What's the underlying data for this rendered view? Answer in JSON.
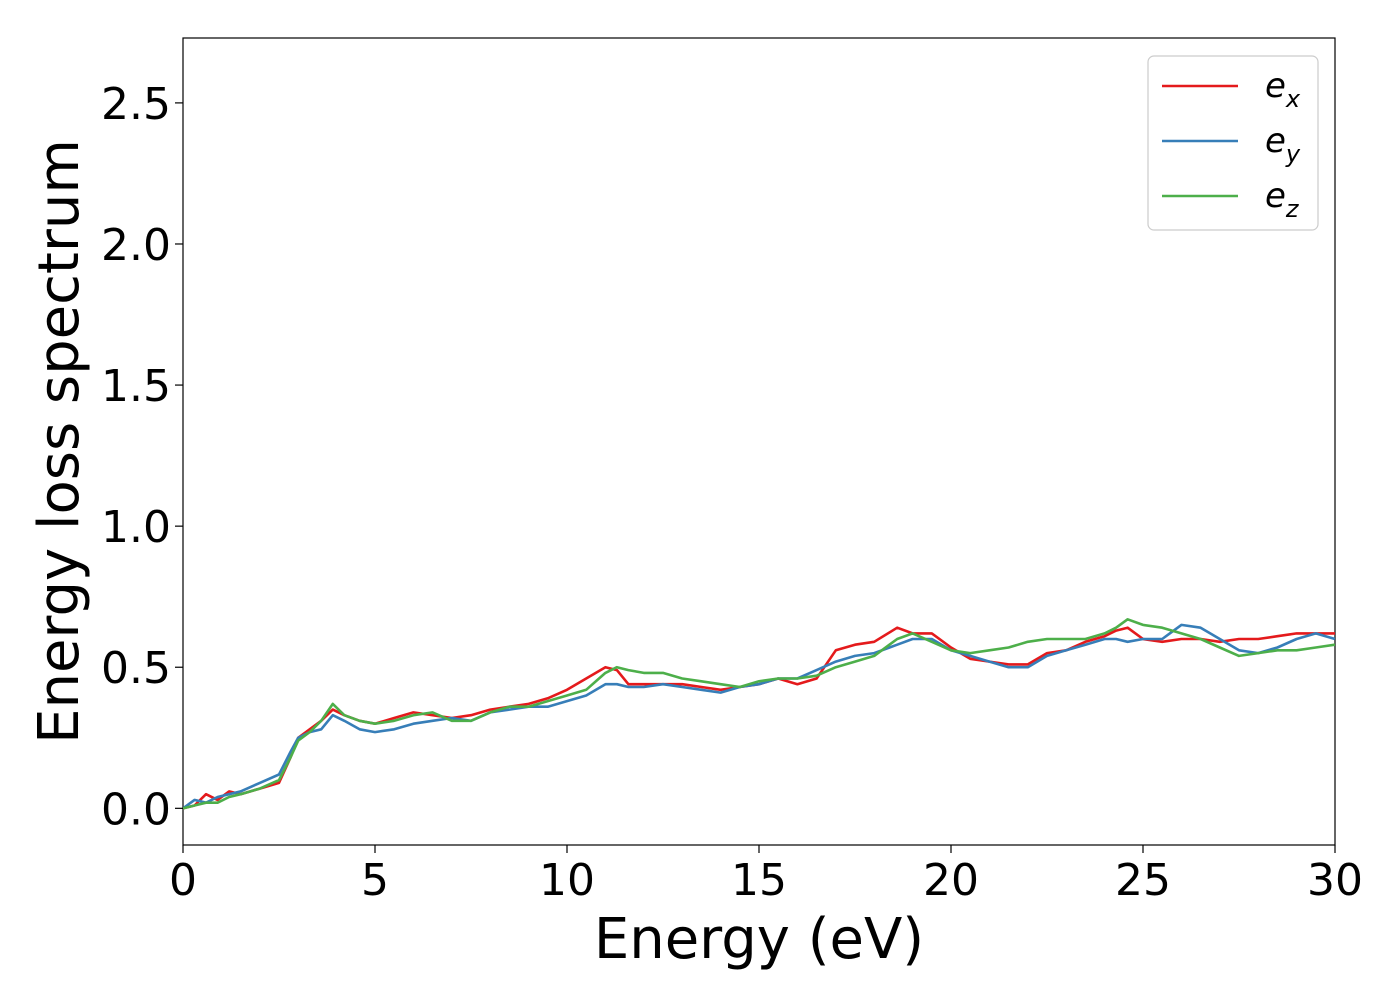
{
  "chart_data": {
    "type": "line",
    "title": "",
    "xlabel": "Energy (eV)",
    "ylabel": "Energy loss spectrum",
    "xlim": [
      0,
      30
    ],
    "ylim": [
      -0.13,
      2.73
    ],
    "xticks": [
      0,
      5,
      10,
      15,
      20,
      25,
      30
    ],
    "xtick_labels": [
      "0",
      "5",
      "10",
      "15",
      "20",
      "25",
      "30"
    ],
    "yticks": [
      0.0,
      0.5,
      1.0,
      1.5,
      2.0,
      2.5
    ],
    "ytick_labels": [
      "0.0",
      "0.5",
      "1.0",
      "1.5",
      "2.0",
      "2.5"
    ],
    "grid": false,
    "legend_position": "top-right",
    "series": [
      {
        "name": "e_x",
        "label_base": "e",
        "label_sub": "x",
        "color": "#e41a1c",
        "x": [
          0,
          0.3,
          0.6,
          0.9,
          1.2,
          1.5,
          2.0,
          2.5,
          2.8,
          3.0,
          3.3,
          3.6,
          3.9,
          4.2,
          4.6,
          5.0,
          5.5,
          6.0,
          6.5,
          7.0,
          7.5,
          8.0,
          8.5,
          9.0,
          9.5,
          10.0,
          10.5,
          11.0,
          11.3,
          11.6,
          12.0,
          12.5,
          13.0,
          13.5,
          14.0,
          14.5,
          15.0,
          15.5,
          16.0,
          16.5,
          17.0,
          17.5,
          18.0,
          18.6,
          19.0,
          19.5,
          20.0,
          20.5,
          21.0,
          21.5,
          22.0,
          22.5,
          23.0,
          23.5,
          24.0,
          24.3,
          24.6,
          25.0,
          25.5,
          26.0,
          26.5,
          27.0,
          27.5,
          28.0,
          28.5,
          29.0,
          29.5,
          30.0
        ],
        "values": [
          0.0,
          0.01,
          0.05,
          0.03,
          0.06,
          0.05,
          0.07,
          0.09,
          0.18,
          0.25,
          0.28,
          0.31,
          0.35,
          0.33,
          0.31,
          0.3,
          0.32,
          0.34,
          0.33,
          0.32,
          0.33,
          0.35,
          0.36,
          0.37,
          0.39,
          0.42,
          0.46,
          0.5,
          0.49,
          0.44,
          0.44,
          0.44,
          0.44,
          0.43,
          0.42,
          0.43,
          0.44,
          0.46,
          0.44,
          0.46,
          0.56,
          0.58,
          0.59,
          0.64,
          0.62,
          0.62,
          0.57,
          0.53,
          0.52,
          0.51,
          0.51,
          0.55,
          0.56,
          0.59,
          0.61,
          0.63,
          0.64,
          0.6,
          0.59,
          0.6,
          0.6,
          0.59,
          0.6,
          0.6,
          0.61,
          0.62,
          0.62,
          0.62
        ]
      },
      {
        "name": "e_y",
        "label_base": "e",
        "label_sub": "y",
        "color": "#377eb8",
        "x": [
          0,
          0.3,
          0.6,
          0.9,
          1.2,
          1.5,
          2.0,
          2.5,
          2.8,
          3.0,
          3.3,
          3.6,
          3.9,
          4.2,
          4.6,
          5.0,
          5.5,
          6.0,
          6.5,
          7.0,
          7.5,
          8.0,
          8.5,
          9.0,
          9.5,
          10.0,
          10.5,
          11.0,
          11.3,
          11.6,
          12.0,
          12.5,
          13.0,
          13.5,
          14.0,
          14.5,
          15.0,
          15.5,
          16.0,
          16.5,
          17.0,
          17.5,
          18.0,
          18.6,
          19.0,
          19.5,
          20.0,
          20.5,
          21.0,
          21.5,
          22.0,
          22.5,
          23.0,
          23.5,
          24.0,
          24.3,
          24.6,
          25.0,
          25.5,
          26.0,
          26.5,
          27.0,
          27.5,
          28.0,
          28.5,
          29.0,
          29.5,
          30.0
        ],
        "values": [
          0.0,
          0.03,
          0.02,
          0.04,
          0.05,
          0.06,
          0.09,
          0.12,
          0.2,
          0.25,
          0.27,
          0.28,
          0.33,
          0.31,
          0.28,
          0.27,
          0.28,
          0.3,
          0.31,
          0.32,
          0.31,
          0.34,
          0.35,
          0.36,
          0.36,
          0.38,
          0.4,
          0.44,
          0.44,
          0.43,
          0.43,
          0.44,
          0.43,
          0.42,
          0.41,
          0.43,
          0.44,
          0.46,
          0.46,
          0.49,
          0.52,
          0.54,
          0.55,
          0.58,
          0.6,
          0.6,
          0.56,
          0.54,
          0.52,
          0.5,
          0.5,
          0.54,
          0.56,
          0.58,
          0.6,
          0.6,
          0.59,
          0.6,
          0.6,
          0.65,
          0.64,
          0.6,
          0.56,
          0.55,
          0.57,
          0.6,
          0.62,
          0.6
        ]
      },
      {
        "name": "e_z",
        "label_base": "e",
        "label_sub": "z",
        "color": "#4daf4a",
        "x": [
          0,
          0.3,
          0.6,
          0.9,
          1.2,
          1.5,
          2.0,
          2.5,
          2.8,
          3.0,
          3.3,
          3.6,
          3.9,
          4.2,
          4.6,
          5.0,
          5.5,
          6.0,
          6.5,
          7.0,
          7.5,
          8.0,
          8.5,
          9.0,
          9.5,
          10.0,
          10.5,
          11.0,
          11.3,
          11.6,
          12.0,
          12.5,
          13.0,
          13.5,
          14.0,
          14.5,
          15.0,
          15.5,
          16.0,
          16.5,
          17.0,
          17.5,
          18.0,
          18.6,
          19.0,
          19.5,
          20.0,
          20.5,
          21.0,
          21.5,
          22.0,
          22.5,
          23.0,
          23.5,
          24.0,
          24.3,
          24.6,
          25.0,
          25.5,
          26.0,
          26.5,
          27.0,
          27.5,
          28.0,
          28.5,
          29.0,
          29.5,
          30.0
        ],
        "values": [
          0.0,
          0.01,
          0.02,
          0.02,
          0.04,
          0.05,
          0.07,
          0.1,
          0.18,
          0.24,
          0.27,
          0.31,
          0.37,
          0.33,
          0.31,
          0.3,
          0.31,
          0.33,
          0.34,
          0.31,
          0.31,
          0.34,
          0.36,
          0.36,
          0.38,
          0.4,
          0.42,
          0.48,
          0.5,
          0.49,
          0.48,
          0.48,
          0.46,
          0.45,
          0.44,
          0.43,
          0.45,
          0.46,
          0.46,
          0.47,
          0.5,
          0.52,
          0.54,
          0.6,
          0.62,
          0.59,
          0.56,
          0.55,
          0.56,
          0.57,
          0.59,
          0.6,
          0.6,
          0.6,
          0.62,
          0.64,
          0.67,
          0.65,
          0.64,
          0.62,
          0.6,
          0.57,
          0.54,
          0.55,
          0.56,
          0.56,
          0.57,
          0.58
        ]
      }
    ]
  }
}
